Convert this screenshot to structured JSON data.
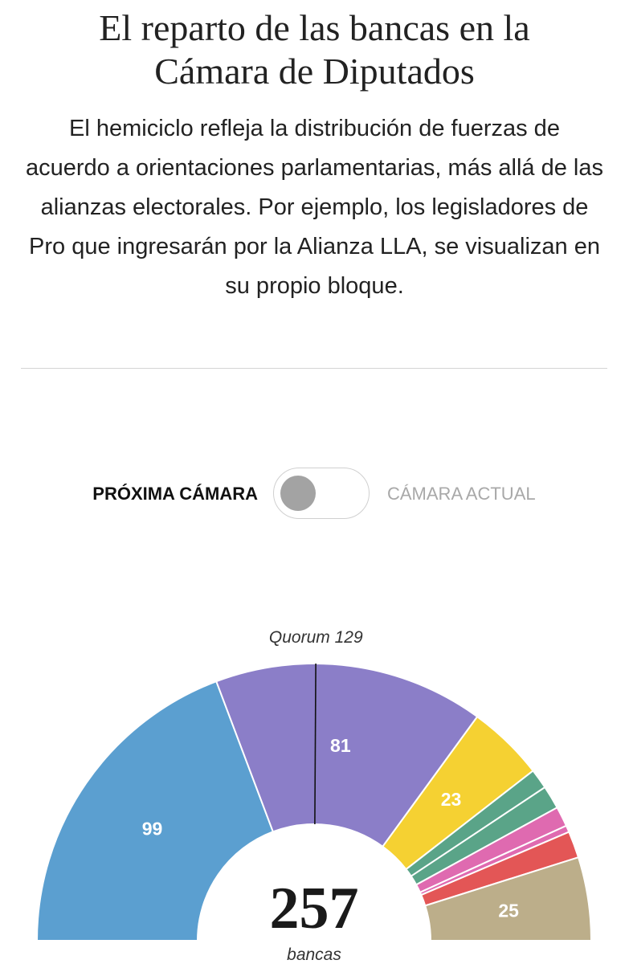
{
  "header": {
    "title_line1": "El reparto de las bancas en la",
    "title_line2": "Cámara de Diputados",
    "lede": "El hemiciclo refleja la distribución de fuerzas de acuerdo a orientaciones parlamentarias, más allá de las alianzas electorales. Por ejemplo, los legisladores de Pro que ingresarán por la Alianza LLA, se visualizan en su propio bloque."
  },
  "toggle": {
    "active_label": "PRÓXIMA CÁMARA",
    "inactive_label": "CÁMARA ACTUAL",
    "selected": "PRÓXIMA CÁMARA"
  },
  "chart_data": {
    "type": "pie",
    "variant": "semicircle",
    "title": "",
    "center_value": "257",
    "center_label": "bancas",
    "total": 257,
    "quorum_label": "Quorum 129",
    "quorum": 129,
    "slices": [
      {
        "value": 99,
        "label": "99",
        "color": "#5b9fd0"
      },
      {
        "value": 81,
        "label": "81",
        "color": "#8b7ec8"
      },
      {
        "value": 23,
        "label": "23",
        "color": "#f5d132"
      },
      {
        "value": 6,
        "label": "",
        "color": "#5aa488"
      },
      {
        "value": 7,
        "label": "",
        "color": "#5aa488"
      },
      {
        "value": 6,
        "label": "",
        "color": "#df6ab0"
      },
      {
        "value": 2,
        "label": "",
        "color": "#df6ab0"
      },
      {
        "value": 8,
        "label": "",
        "color": "#e35656"
      },
      {
        "value": 25,
        "label": "25",
        "color": "#bcae8a"
      }
    ]
  }
}
